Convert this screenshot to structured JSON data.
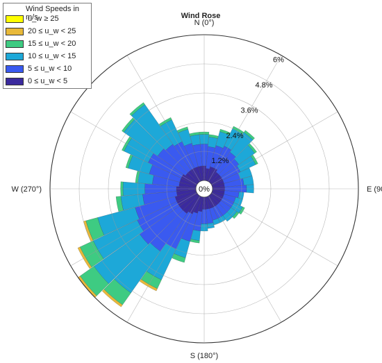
{
  "chart_data": {
    "type": "polar-bar",
    "title": "Wind Rose",
    "direction_labels": [
      {
        "angle": 0,
        "text": "N (0°)"
      },
      {
        "angle": 90,
        "text": "E (90°)"
      },
      {
        "angle": 180,
        "text": "S (180°)"
      },
      {
        "angle": 270,
        "text": "W (270°)"
      }
    ],
    "center_label": "0%",
    "radial_ticks": [
      {
        "value": 1.2,
        "text": "1.2%"
      },
      {
        "value": 2.4,
        "text": "2.4%"
      },
      {
        "value": 3.6,
        "text": "3.6%"
      },
      {
        "value": 4.8,
        "text": "4.8%"
      },
      {
        "value": 6.0,
        "text": "6%"
      }
    ],
    "radial_max": 6.0,
    "sector_width_deg": 10,
    "legend": {
      "title": "Wind Speeds in m/s",
      "items": [
        {
          "label": "u_w ≥ 25",
          "color": "#ffff00"
        },
        {
          "label": "20 ≤ u_w < 25",
          "color": "#e8b93a"
        },
        {
          "label": "15 ≤ u_w < 20",
          "color": "#3ecb82"
        },
        {
          "label": "10 ≤ u_w < 15",
          "color": "#1da8d8"
        },
        {
          "label": "5 ≤ u_w < 10",
          "color": "#3a5af0"
        },
        {
          "label": "0 ≤ u_w < 5",
          "color": "#3b2a9e"
        }
      ]
    },
    "bin_colors": [
      "#3b2a9e",
      "#3a5af0",
      "#1da8d8",
      "#3ecb82",
      "#e8b93a",
      "#ffff00"
    ],
    "series": [
      {
        "direction": 0,
        "values": [
          0.6,
          0.9,
          0.4,
          0.1,
          0,
          0
        ]
      },
      {
        "direction": 10,
        "values": [
          0.5,
          0.9,
          0.4,
          0.1,
          0,
          0
        ]
      },
      {
        "direction": 20,
        "values": [
          0.6,
          0.9,
          0.6,
          0.1,
          0,
          0
        ]
      },
      {
        "direction": 30,
        "values": [
          0.6,
          1.0,
          0.8,
          0.1,
          0,
          0
        ]
      },
      {
        "direction": 40,
        "values": [
          0.5,
          1.0,
          1.0,
          0.1,
          0,
          0
        ]
      },
      {
        "direction": 50,
        "values": [
          0.5,
          0.9,
          0.8,
          0.1,
          0,
          0
        ]
      },
      {
        "direction": 60,
        "values": [
          0.5,
          0.8,
          0.7,
          0.1,
          0,
          0
        ]
      },
      {
        "direction": 70,
        "values": [
          0.5,
          0.7,
          0.5,
          0.0,
          0,
          0
        ]
      },
      {
        "direction": 80,
        "values": [
          0.5,
          0.8,
          0.4,
          0.0,
          0,
          0
        ]
      },
      {
        "direction": 90,
        "values": [
          0.5,
          0.9,
          0.3,
          0.0,
          0,
          0
        ]
      },
      {
        "direction": 100,
        "values": [
          0.5,
          0.6,
          0.2,
          0.0,
          0,
          0
        ]
      },
      {
        "direction": 110,
        "values": [
          0.5,
          0.5,
          0.3,
          0.0,
          0,
          0
        ]
      },
      {
        "direction": 120,
        "values": [
          0.5,
          0.5,
          0.4,
          0.1,
          0,
          0
        ]
      },
      {
        "direction": 130,
        "values": [
          0.5,
          0.5,
          0.3,
          0.1,
          0,
          0
        ]
      },
      {
        "direction": 140,
        "values": [
          0.5,
          0.5,
          0.3,
          0.0,
          0,
          0
        ]
      },
      {
        "direction": 150,
        "values": [
          0.5,
          0.5,
          0.2,
          0.0,
          0,
          0
        ]
      },
      {
        "direction": 160,
        "values": [
          0.5,
          0.5,
          0.2,
          0.0,
          0,
          0
        ]
      },
      {
        "direction": 170,
        "values": [
          0.5,
          0.6,
          0.2,
          0.0,
          0,
          0
        ]
      },
      {
        "direction": 180,
        "values": [
          0.5,
          0.6,
          0.3,
          0.0,
          0,
          0
        ]
      },
      {
        "direction": 190,
        "values": [
          0.6,
          0.8,
          0.4,
          0.1,
          0,
          0
        ]
      },
      {
        "direction": 200,
        "values": [
          0.7,
          1.2,
          0.7,
          0.2,
          0,
          0
        ]
      },
      {
        "direction": 210,
        "values": [
          0.8,
          1.6,
          1.4,
          0.4,
          0.1,
          0
        ]
      },
      {
        "direction": 220,
        "values": [
          0.9,
          1.9,
          2.1,
          0.6,
          0.1,
          0
        ]
      },
      {
        "direction": 230,
        "values": [
          0.9,
          2.0,
          2.3,
          0.7,
          0.1,
          0
        ]
      },
      {
        "direction": 240,
        "values": [
          0.9,
          1.8,
          2.0,
          0.6,
          0.1,
          0
        ]
      },
      {
        "direction": 250,
        "values": [
          0.9,
          1.7,
          1.6,
          0.5,
          0.1,
          0
        ]
      },
      {
        "direction": 260,
        "values": [
          0.8,
          1.4,
          0.9,
          0.2,
          0.0,
          0
        ]
      },
      {
        "direction": 270,
        "values": [
          0.8,
          1.3,
          0.9,
          0.1,
          0,
          0
        ]
      },
      {
        "direction": 280,
        "values": [
          0.7,
          1.1,
          0.6,
          0.1,
          0,
          0
        ]
      },
      {
        "direction": 290,
        "values": [
          0.7,
          1.3,
          0.9,
          0.1,
          0,
          0
        ]
      },
      {
        "direction": 300,
        "values": [
          0.7,
          1.5,
          1.1,
          0.1,
          0,
          0
        ]
      },
      {
        "direction": 310,
        "values": [
          0.6,
          1.4,
          1.7,
          0.1,
          0,
          0
        ]
      },
      {
        "direction": 320,
        "values": [
          0.6,
          1.3,
          2.0,
          0.1,
          0,
          0
        ]
      },
      {
        "direction": 330,
        "values": [
          0.6,
          1.2,
          1.0,
          0.1,
          0,
          0
        ]
      },
      {
        "direction": 340,
        "values": [
          0.6,
          1.0,
          0.6,
          0.1,
          0,
          0
        ]
      },
      {
        "direction": 350,
        "values": [
          0.6,
          0.9,
          0.4,
          0.1,
          0,
          0
        ]
      }
    ]
  }
}
